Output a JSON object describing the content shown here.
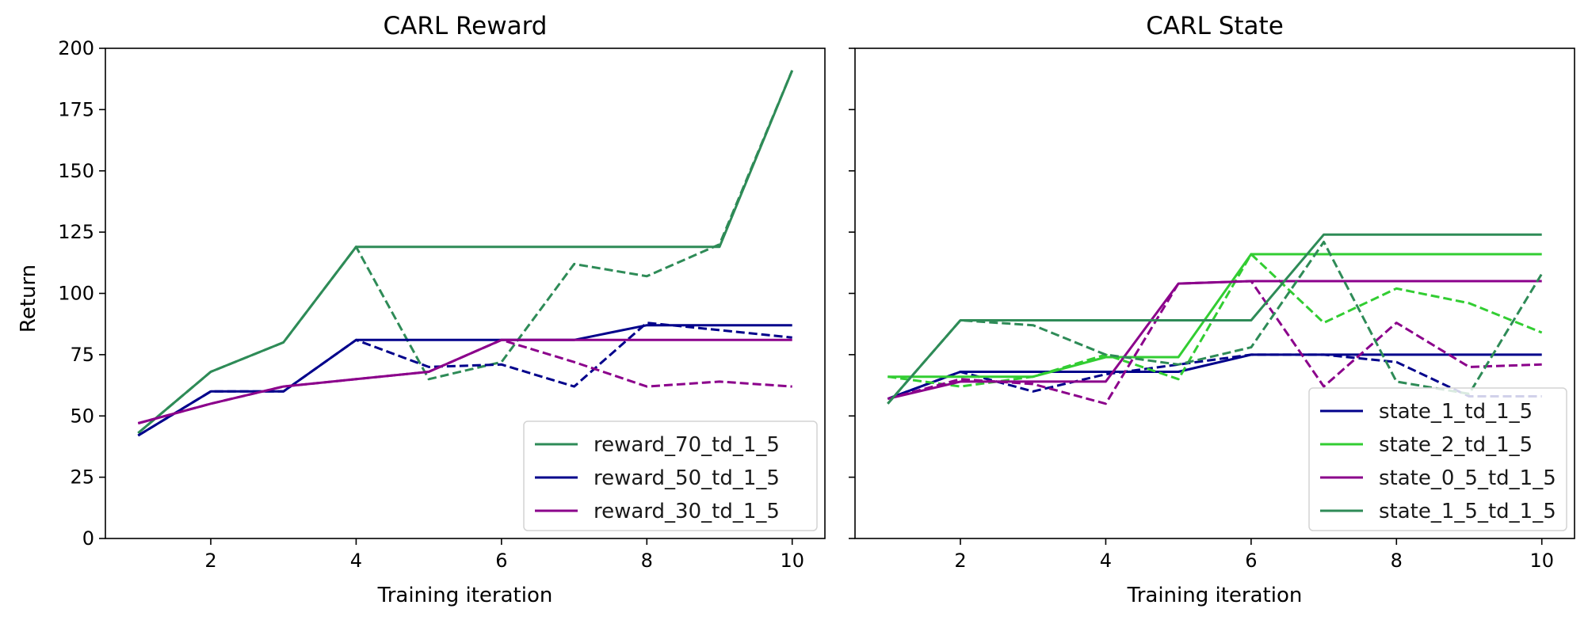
{
  "chart_data": [
    {
      "type": "line",
      "title": "CARL Reward",
      "xlabel": "Training iteration",
      "ylabel": "Return",
      "xlim": [
        0.55,
        10.45
      ],
      "ylim": [
        0,
        200
      ],
      "xticks": [
        "2",
        "4",
        "6",
        "8",
        "10"
      ],
      "yticks": [
        "0",
        "25",
        "50",
        "75",
        "100",
        "125",
        "150",
        "175",
        "200"
      ],
      "legend_position": "lower-right",
      "x": [
        1,
        2,
        3,
        4,
        5,
        6,
        7,
        8,
        9,
        10
      ],
      "series": [
        {
          "name": "reward_70_td_1_5",
          "color": "#2e8b57",
          "style": "solid",
          "values": [
            43,
            68,
            80,
            119,
            119,
            119,
            119,
            119,
            119,
            191
          ]
        },
        {
          "name": "",
          "color": "#2e8b57",
          "style": "dashed",
          "values": [
            43,
            68,
            80,
            119,
            65,
            72,
            112,
            107,
            120,
            191
          ]
        },
        {
          "name": "reward_50_td_1_5",
          "color": "#00008b",
          "style": "solid",
          "values": [
            42,
            60,
            60,
            81,
            81,
            81,
            81,
            87,
            87,
            87
          ]
        },
        {
          "name": "",
          "color": "#00008b",
          "style": "dashed",
          "values": [
            42,
            60,
            60,
            81,
            70,
            71,
            62,
            88,
            85,
            82
          ]
        },
        {
          "name": "reward_30_td_1_5",
          "color": "#8b008b",
          "style": "solid",
          "values": [
            47,
            55,
            62,
            65,
            68,
            81,
            81,
            81,
            81,
            81
          ]
        },
        {
          "name": "",
          "color": "#8b008b",
          "style": "dashed",
          "values": [
            47,
            55,
            62,
            65,
            68,
            81,
            72,
            62,
            64,
            62
          ]
        }
      ]
    },
    {
      "type": "line",
      "title": "CARL State",
      "xlabel": "Training iteration",
      "ylabel": "",
      "xlim": [
        0.55,
        10.45
      ],
      "ylim": [
        0,
        200
      ],
      "xticks": [
        "2",
        "4",
        "6",
        "8",
        "10"
      ],
      "yticks": [
        "0",
        "25",
        "50",
        "75",
        "100",
        "125",
        "150",
        "175",
        "200"
      ],
      "legend_position": "lower-right",
      "x": [
        1,
        2,
        3,
        4,
        5,
        6,
        7,
        8,
        9,
        10
      ],
      "series": [
        {
          "name": "state_1_td_1_5",
          "color": "#00008b",
          "style": "solid",
          "values": [
            57,
            68,
            68,
            68,
            68,
            75,
            75,
            75,
            75,
            75
          ]
        },
        {
          "name": "",
          "color": "#00008b",
          "style": "dashed",
          "values": [
            57,
            68,
            60,
            67,
            71,
            75,
            75,
            72,
            58,
            58
          ]
        },
        {
          "name": "state_2_td_1_5",
          "color": "#32cd32",
          "style": "solid",
          "values": [
            66,
            66,
            66,
            74,
            74,
            116,
            116,
            116,
            116,
            116
          ]
        },
        {
          "name": "",
          "color": "#32cd32",
          "style": "dashed",
          "values": [
            66,
            62,
            66,
            75,
            65,
            116,
            88,
            102,
            96,
            84
          ]
        },
        {
          "name": "state_0_5_td_1_5",
          "color": "#8b008b",
          "style": "solid",
          "values": [
            57,
            64,
            64,
            64,
            104,
            105,
            105,
            105,
            105,
            105
          ]
        },
        {
          "name": "",
          "color": "#8b008b",
          "style": "dashed",
          "values": [
            57,
            65,
            63,
            55,
            104,
            105,
            62,
            88,
            70,
            71
          ]
        },
        {
          "name": "state_1_5_td_1_5",
          "color": "#2e8b57",
          "style": "solid",
          "values": [
            55,
            89,
            89,
            89,
            89,
            89,
            124,
            124,
            124,
            124
          ]
        },
        {
          "name": "",
          "color": "#2e8b57",
          "style": "dashed",
          "values": [
            55,
            89,
            87,
            75,
            71,
            78,
            121,
            64,
            59,
            108
          ]
        }
      ]
    }
  ]
}
